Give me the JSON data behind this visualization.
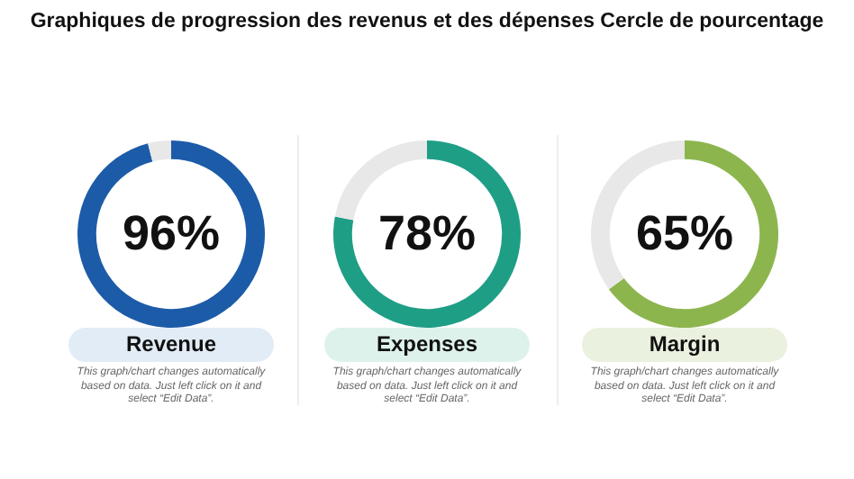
{
  "chart_data": [
    {
      "type": "donut",
      "title": "Graphiques de progression des revenus et des dépenses Cercle de pourcentage",
      "categories": [
        "Revenue",
        null
      ],
      "values": [
        96,
        4
      ],
      "colors": [
        "#1c5ba8",
        "#e8e8e8"
      ],
      "value_labels": [
        "96%",
        null
      ],
      "legend": false,
      "annotations": [
        "This graph/chart changes automatically based on data. Just left click on it and select “Edit Data”."
      ]
    },
    {
      "type": "donut",
      "categories": [
        "Expenses",
        null
      ],
      "values": [
        78,
        22
      ],
      "colors": [
        "#1f9e86",
        "#e8e8e8"
      ],
      "value_labels": [
        "78%",
        null
      ],
      "legend": false,
      "annotations": [
        "This graph/chart changes automatically based on data. Just left click on it and select “Edit Data”."
      ]
    },
    {
      "type": "donut",
      "categories": [
        "Margin",
        null
      ],
      "values": [
        65,
        35
      ],
      "colors": [
        "#8db54e",
        "#e8e8e8"
      ],
      "value_labels": [
        "65%",
        null
      ],
      "legend": false,
      "annotations": [
        "This graph/chart changes automatically based on data. Just left click on it and select “Edit Data”."
      ]
    }
  ]
}
